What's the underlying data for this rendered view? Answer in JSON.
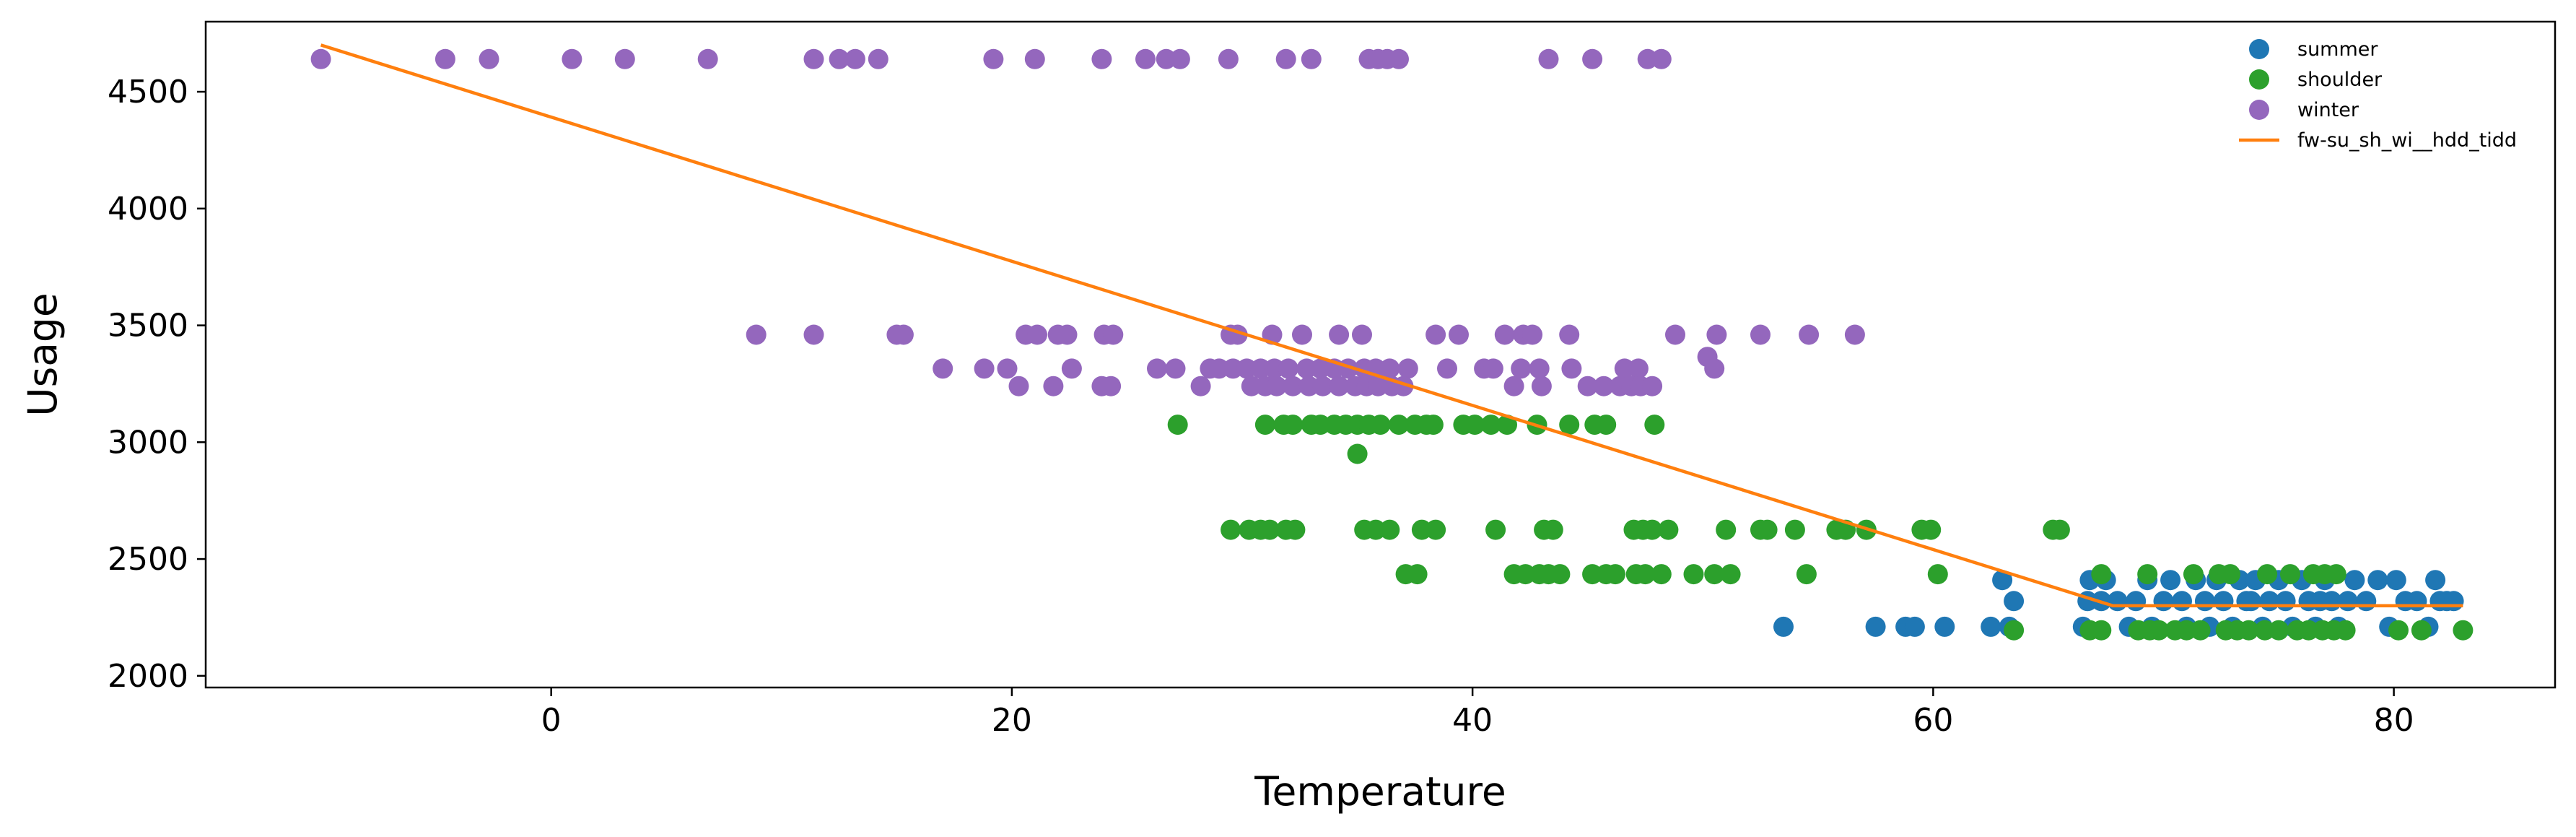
{
  "chart_data": {
    "type": "scatter",
    "title": "",
    "xlabel": "Temperature",
    "ylabel": "Usage",
    "xlim": [
      -15,
      87
    ],
    "ylim": [
      1950,
      4800
    ],
    "xticks": [
      0,
      20,
      40,
      60,
      80
    ],
    "yticks": [
      2000,
      2500,
      3000,
      3500,
      4000,
      4500
    ],
    "grid": false,
    "legend_position": "top-right",
    "series": [
      {
        "name": "summer",
        "color": "#1f77b4",
        "marker": "circle",
        "points": [
          [
            53.5,
            2210
          ],
          [
            57.5,
            2210
          ],
          [
            58.8,
            2210
          ],
          [
            59.2,
            2210
          ],
          [
            60.5,
            2210
          ],
          [
            62.5,
            2210
          ],
          [
            63.0,
            2410
          ],
          [
            63.5,
            2320
          ],
          [
            63.3,
            2210
          ],
          [
            66.5,
            2210
          ],
          [
            66.7,
            2320
          ],
          [
            66.8,
            2410
          ],
          [
            67.3,
            2320
          ],
          [
            67.5,
            2410
          ],
          [
            68.0,
            2320
          ],
          [
            68.5,
            2210
          ],
          [
            68.8,
            2320
          ],
          [
            69.3,
            2410
          ],
          [
            69.5,
            2210
          ],
          [
            70.0,
            2320
          ],
          [
            70.3,
            2410
          ],
          [
            70.8,
            2320
          ],
          [
            71.0,
            2210
          ],
          [
            71.4,
            2410
          ],
          [
            71.8,
            2320
          ],
          [
            72.0,
            2210
          ],
          [
            72.3,
            2410
          ],
          [
            72.6,
            2320
          ],
          [
            73.0,
            2210
          ],
          [
            73.3,
            2410
          ],
          [
            73.6,
            2320
          ],
          [
            74.0,
            2410
          ],
          [
            74.3,
            2210
          ],
          [
            74.6,
            2320
          ],
          [
            75.0,
            2410
          ],
          [
            75.3,
            2320
          ],
          [
            75.6,
            2210
          ],
          [
            76.0,
            2410
          ],
          [
            76.3,
            2320
          ],
          [
            76.6,
            2210
          ],
          [
            77.0,
            2410
          ],
          [
            77.3,
            2320
          ],
          [
            77.6,
            2210
          ],
          [
            78.0,
            2320
          ],
          [
            78.3,
            2410
          ],
          [
            78.8,
            2320
          ],
          [
            79.3,
            2410
          ],
          [
            79.8,
            2210
          ],
          [
            80.1,
            2410
          ],
          [
            80.5,
            2320
          ],
          [
            81.0,
            2320
          ],
          [
            81.5,
            2210
          ],
          [
            81.8,
            2410
          ],
          [
            82.0,
            2320
          ],
          [
            82.3,
            2320
          ],
          [
            82.6,
            2320
          ],
          [
            73.8,
            2320
          ],
          [
            76.8,
            2320
          ]
        ]
      },
      {
        "name": "shoulder",
        "color": "#2ca02c",
        "marker": "circle",
        "points": [
          [
            27.2,
            3075
          ],
          [
            31.0,
            3075
          ],
          [
            31.8,
            3075
          ],
          [
            32.2,
            3075
          ],
          [
            33.0,
            3075
          ],
          [
            33.4,
            3075
          ],
          [
            34.0,
            3075
          ],
          [
            34.5,
            3075
          ],
          [
            35.0,
            3075
          ],
          [
            35.5,
            3075
          ],
          [
            36.0,
            3075
          ],
          [
            36.8,
            3075
          ],
          [
            37.5,
            3075
          ],
          [
            38.0,
            3075
          ],
          [
            38.3,
            3075
          ],
          [
            39.6,
            3075
          ],
          [
            40.1,
            3075
          ],
          [
            40.8,
            3075
          ],
          [
            41.5,
            3075
          ],
          [
            42.8,
            3075
          ],
          [
            44.2,
            3075
          ],
          [
            45.3,
            3075
          ],
          [
            45.8,
            3075
          ],
          [
            47.9,
            3075
          ],
          [
            35.0,
            2950
          ],
          [
            29.5,
            2625
          ],
          [
            30.3,
            2625
          ],
          [
            30.8,
            2625
          ],
          [
            31.2,
            2625
          ],
          [
            31.9,
            2625
          ],
          [
            32.3,
            2625
          ],
          [
            35.3,
            2625
          ],
          [
            35.8,
            2625
          ],
          [
            36.4,
            2625
          ],
          [
            37.8,
            2625
          ],
          [
            38.4,
            2625
          ],
          [
            41.0,
            2625
          ],
          [
            43.1,
            2625
          ],
          [
            43.5,
            2625
          ],
          [
            47.0,
            2625
          ],
          [
            47.4,
            2625
          ],
          [
            47.8,
            2625
          ],
          [
            48.5,
            2625
          ],
          [
            51.0,
            2625
          ],
          [
            52.5,
            2625
          ],
          [
            52.8,
            2625
          ],
          [
            54.0,
            2625
          ],
          [
            55.8,
            2625
          ],
          [
            56.2,
            2625
          ],
          [
            57.1,
            2625
          ],
          [
            59.5,
            2625
          ],
          [
            59.9,
            2625
          ],
          [
            65.2,
            2625
          ],
          [
            65.5,
            2625
          ],
          [
            37.1,
            2435
          ],
          [
            37.6,
            2435
          ],
          [
            41.8,
            2435
          ],
          [
            42.3,
            2435
          ],
          [
            42.9,
            2435
          ],
          [
            43.3,
            2435
          ],
          [
            43.8,
            2435
          ],
          [
            45.2,
            2435
          ],
          [
            45.8,
            2435
          ],
          [
            46.2,
            2435
          ],
          [
            47.1,
            2435
          ],
          [
            47.5,
            2435
          ],
          [
            48.2,
            2435
          ],
          [
            49.6,
            2435
          ],
          [
            50.5,
            2435
          ],
          [
            51.2,
            2435
          ],
          [
            54.5,
            2435
          ],
          [
            60.2,
            2435
          ],
          [
            67.3,
            2435
          ],
          [
            69.3,
            2435
          ],
          [
            71.3,
            2435
          ],
          [
            72.4,
            2435
          ],
          [
            72.9,
            2435
          ],
          [
            74.5,
            2435
          ],
          [
            75.5,
            2435
          ],
          [
            76.5,
            2435
          ],
          [
            77.0,
            2435
          ],
          [
            77.5,
            2435
          ],
          [
            63.5,
            2195
          ],
          [
            66.8,
            2195
          ],
          [
            67.3,
            2195
          ],
          [
            68.9,
            2195
          ],
          [
            69.4,
            2195
          ],
          [
            69.8,
            2195
          ],
          [
            70.5,
            2195
          ],
          [
            71.0,
            2195
          ],
          [
            71.6,
            2195
          ],
          [
            72.7,
            2195
          ],
          [
            73.2,
            2195
          ],
          [
            73.7,
            2195
          ],
          [
            74.4,
            2195
          ],
          [
            75.0,
            2195
          ],
          [
            75.8,
            2195
          ],
          [
            76.3,
            2195
          ],
          [
            76.9,
            2195
          ],
          [
            77.4,
            2195
          ],
          [
            77.9,
            2195
          ],
          [
            80.2,
            2195
          ],
          [
            81.2,
            2195
          ],
          [
            83.0,
            2195
          ]
        ]
      },
      {
        "name": "winter",
        "color": "#9467bd",
        "marker": "circle",
        "points": [
          [
            -10.0,
            4640
          ],
          [
            -4.6,
            4640
          ],
          [
            -2.7,
            4640
          ],
          [
            0.9,
            4640
          ],
          [
            3.2,
            4640
          ],
          [
            6.8,
            4640
          ],
          [
            11.4,
            4640
          ],
          [
            12.5,
            4640
          ],
          [
            13.2,
            4640
          ],
          [
            14.2,
            4640
          ],
          [
            19.2,
            4640
          ],
          [
            21.0,
            4640
          ],
          [
            23.9,
            4640
          ],
          [
            25.8,
            4640
          ],
          [
            26.7,
            4640
          ],
          [
            27.3,
            4640
          ],
          [
            29.4,
            4640
          ],
          [
            31.9,
            4640
          ],
          [
            33.0,
            4640
          ],
          [
            35.5,
            4640
          ],
          [
            35.9,
            4640
          ],
          [
            36.3,
            4640
          ],
          [
            36.8,
            4640
          ],
          [
            43.3,
            4640
          ],
          [
            45.2,
            4640
          ],
          [
            47.6,
            4640
          ],
          [
            48.2,
            4640
          ],
          [
            8.9,
            3460
          ],
          [
            11.4,
            3460
          ],
          [
            15.0,
            3460
          ],
          [
            15.3,
            3460
          ],
          [
            20.6,
            3460
          ],
          [
            21.1,
            3460
          ],
          [
            22.0,
            3460
          ],
          [
            22.4,
            3460
          ],
          [
            24.0,
            3460
          ],
          [
            24.4,
            3460
          ],
          [
            29.5,
            3460
          ],
          [
            29.8,
            3460
          ],
          [
            31.3,
            3460
          ],
          [
            32.6,
            3460
          ],
          [
            34.2,
            3460
          ],
          [
            35.2,
            3460
          ],
          [
            38.4,
            3460
          ],
          [
            39.4,
            3460
          ],
          [
            41.4,
            3460
          ],
          [
            42.2,
            3460
          ],
          [
            42.6,
            3460
          ],
          [
            44.2,
            3460
          ],
          [
            48.8,
            3460
          ],
          [
            50.6,
            3460
          ],
          [
            52.5,
            3460
          ],
          [
            54.6,
            3460
          ],
          [
            56.6,
            3460
          ],
          [
            17.0,
            3315
          ],
          [
            18.8,
            3315
          ],
          [
            19.8,
            3315
          ],
          [
            22.6,
            3315
          ],
          [
            26.3,
            3315
          ],
          [
            27.1,
            3315
          ],
          [
            28.6,
            3315
          ],
          [
            29.0,
            3315
          ],
          [
            29.6,
            3315
          ],
          [
            30.2,
            3315
          ],
          [
            30.8,
            3315
          ],
          [
            31.4,
            3315
          ],
          [
            32.0,
            3315
          ],
          [
            32.8,
            3315
          ],
          [
            33.4,
            3315
          ],
          [
            34.0,
            3315
          ],
          [
            34.6,
            3315
          ],
          [
            35.3,
            3315
          ],
          [
            35.8,
            3315
          ],
          [
            36.4,
            3315
          ],
          [
            37.2,
            3315
          ],
          [
            38.9,
            3315
          ],
          [
            40.5,
            3315
          ],
          [
            40.9,
            3315
          ],
          [
            42.1,
            3315
          ],
          [
            42.9,
            3315
          ],
          [
            44.3,
            3315
          ],
          [
            46.6,
            3315
          ],
          [
            47.2,
            3315
          ],
          [
            50.2,
            3365
          ],
          [
            50.5,
            3315
          ],
          [
            20.3,
            3240
          ],
          [
            21.8,
            3240
          ],
          [
            23.9,
            3240
          ],
          [
            24.3,
            3240
          ],
          [
            28.2,
            3240
          ],
          [
            30.4,
            3240
          ],
          [
            31.0,
            3240
          ],
          [
            31.5,
            3240
          ],
          [
            32.2,
            3240
          ],
          [
            32.9,
            3240
          ],
          [
            33.5,
            3240
          ],
          [
            34.2,
            3240
          ],
          [
            34.9,
            3240
          ],
          [
            35.4,
            3240
          ],
          [
            35.9,
            3240
          ],
          [
            36.5,
            3240
          ],
          [
            37.0,
            3240
          ],
          [
            41.8,
            3240
          ],
          [
            43.0,
            3240
          ],
          [
            45.0,
            3240
          ],
          [
            45.7,
            3240
          ],
          [
            46.4,
            3240
          ],
          [
            46.9,
            3240
          ],
          [
            47.3,
            3240
          ],
          [
            47.8,
            3240
          ]
        ]
      },
      {
        "name": "fw-su_sh_wi__hdd_tidd",
        "color": "#ff7f0e",
        "type": "line",
        "points": [
          [
            -10,
            4700
          ],
          [
            67.8,
            2300
          ],
          [
            83,
            2300
          ]
        ]
      }
    ]
  }
}
